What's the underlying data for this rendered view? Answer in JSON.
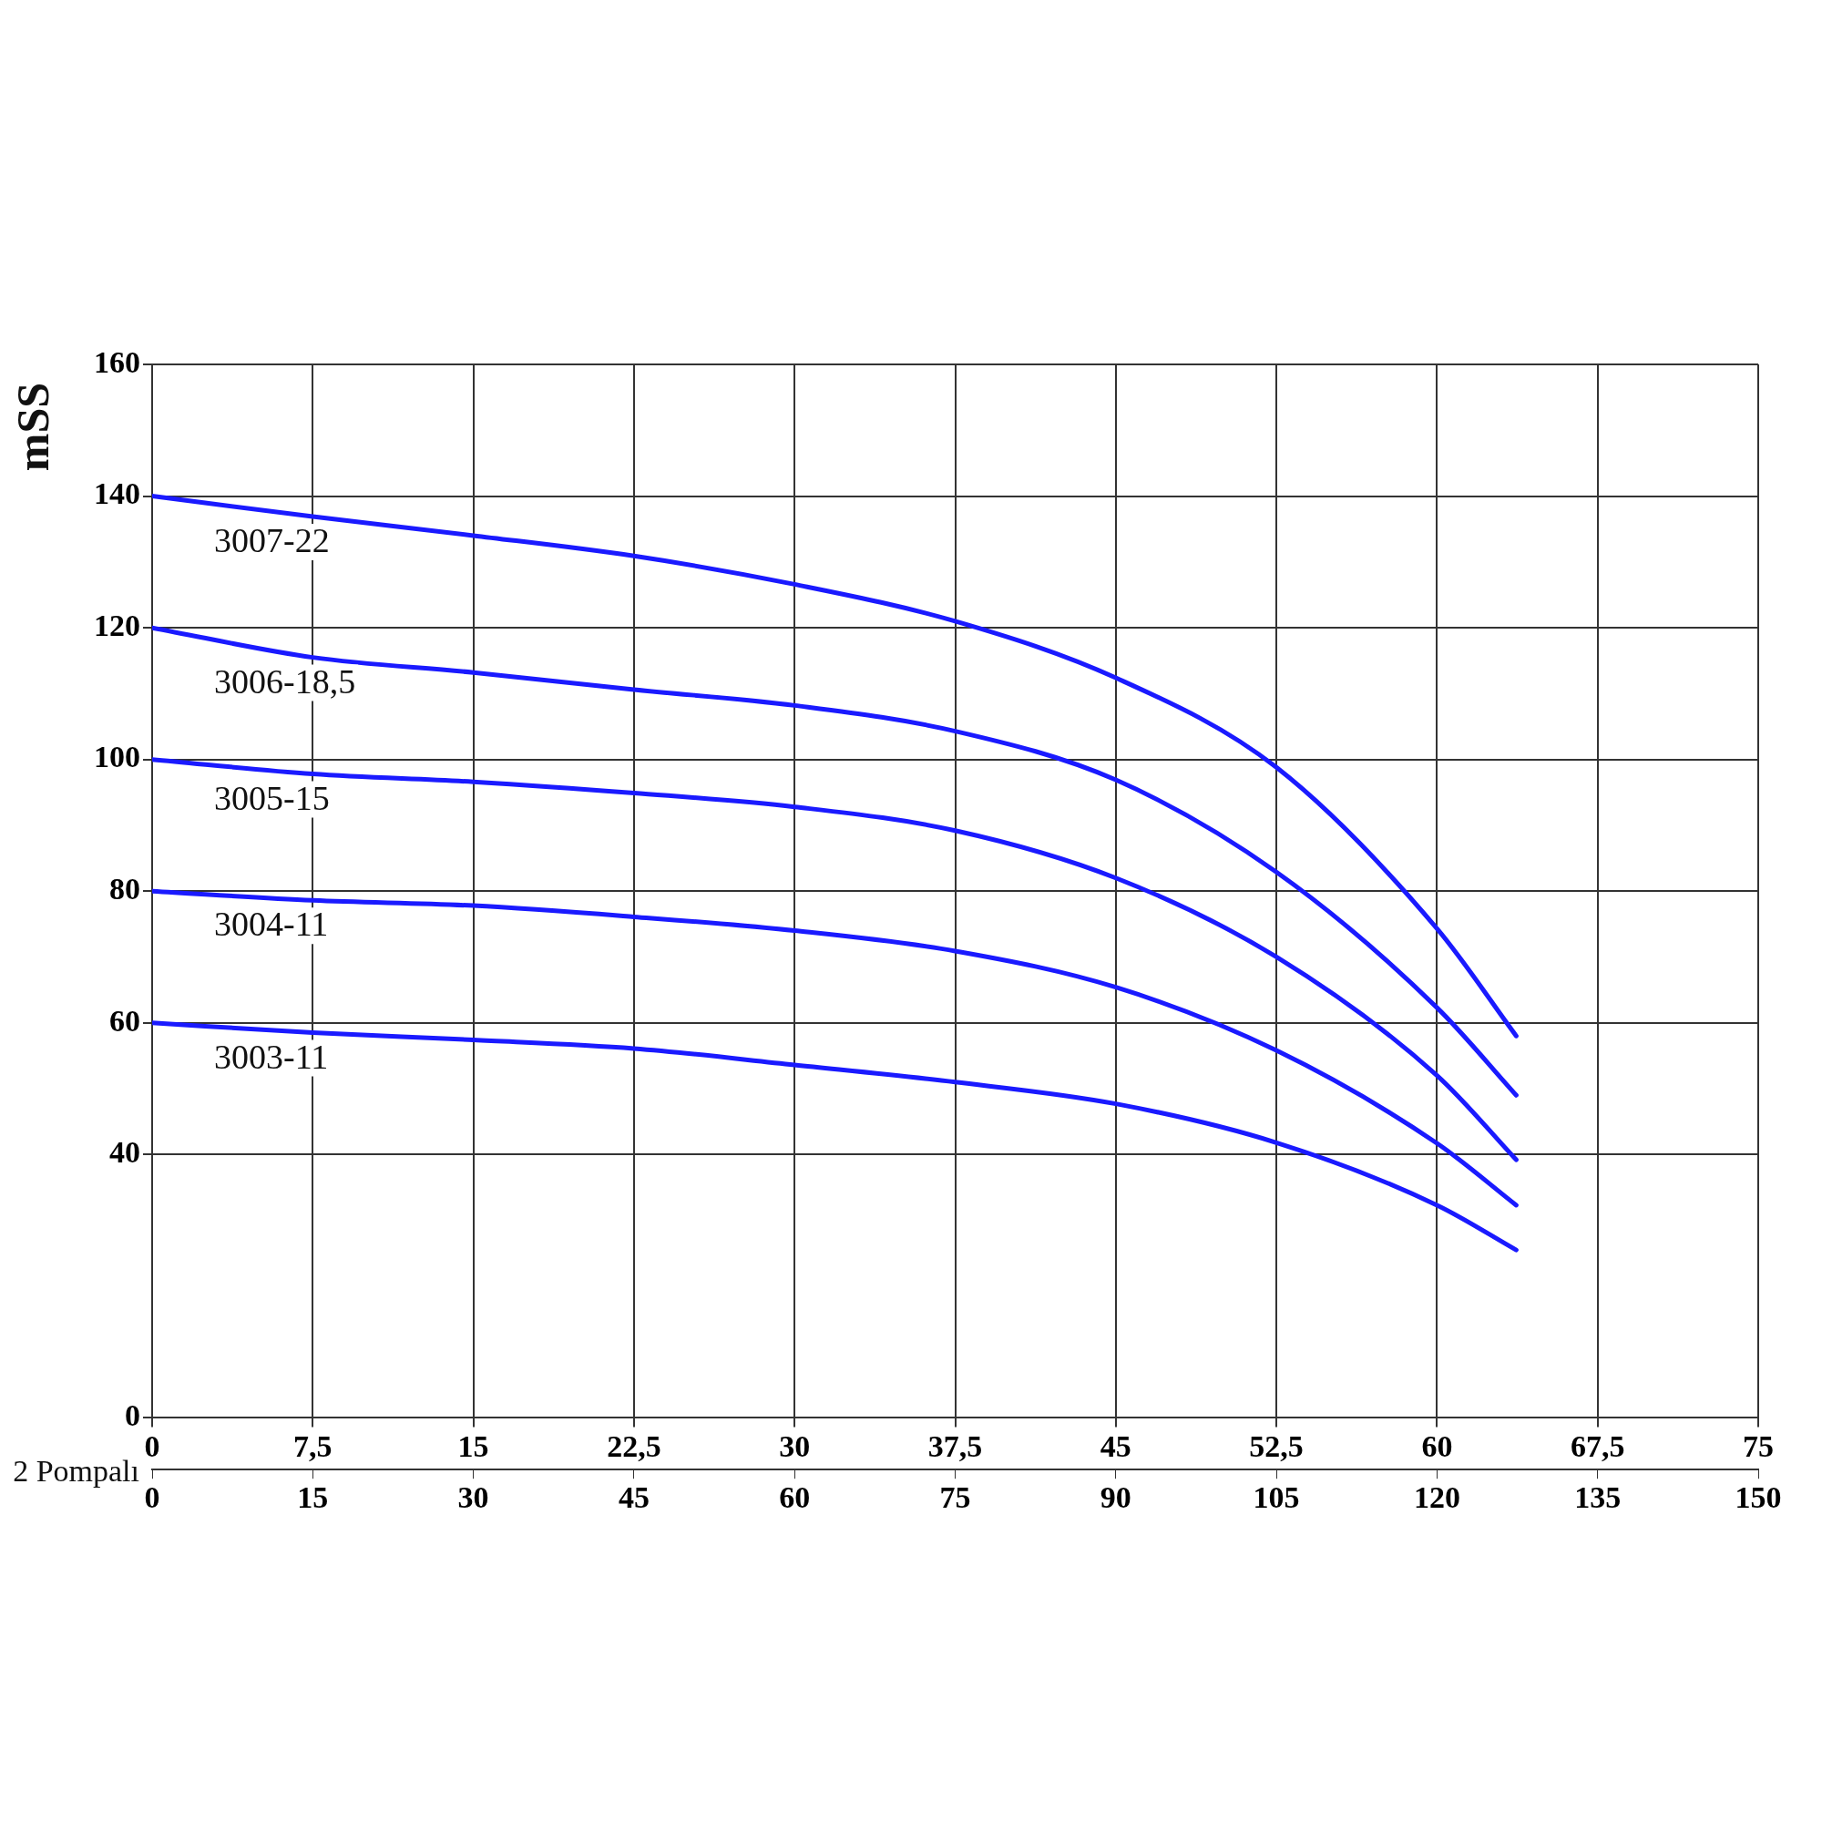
{
  "chart_data": {
    "type": "line",
    "ylabel": "mSS",
    "x2label": "2 Pompalı",
    "xlim": [
      0,
      75
    ],
    "xticks": [
      0,
      {
        "value": 7.5,
        "label": "7,5"
      },
      15,
      {
        "value": 22.5,
        "label": "22,5"
      },
      30,
      {
        "value": 37.5,
        "label": "37,5"
      },
      45,
      {
        "value": 52.5,
        "label": "52,5"
      },
      60,
      {
        "value": 67.5,
        "label": "67,5"
      },
      75
    ],
    "x2lim": [
      0,
      150
    ],
    "x2ticks": [
      0,
      15,
      30,
      45,
      60,
      75,
      90,
      105,
      120,
      135,
      150
    ],
    "ylim": [
      0,
      160
    ],
    "yticks": [
      0,
      40,
      60,
      80,
      100,
      120,
      140,
      160
    ],
    "grid": true,
    "legend": false,
    "marker": "none",
    "line_style": "solid",
    "x": [
      0,
      7.5,
      15,
      22.5,
      30,
      37.5,
      45,
      52.5,
      60,
      63.7
    ],
    "series": [
      {
        "name": "3007-22",
        "color": "#1a1aff",
        "values": [
          140,
          136.9,
          134,
          130.9,
          126.6,
          121,
          112.4,
          98.8,
          74.3,
          58
        ]
      },
      {
        "name": "3006-18,5",
        "color": "#1a1aff",
        "values": [
          120,
          115.5,
          113.2,
          110.6,
          108.2,
          104.3,
          96.9,
          82.9,
          62.3,
          49
        ]
      },
      {
        "name": "3005-15",
        "color": "#1a1aff",
        "values": [
          100,
          97.8,
          96.6,
          94.9,
          92.8,
          89.2,
          82,
          70,
          52,
          39.2
        ]
      },
      {
        "name": "3004-11",
        "color": "#1a1aff",
        "values": [
          80,
          78.6,
          77.8,
          76.1,
          74,
          70.9,
          65.4,
          55.8,
          41.7,
          32.3
        ]
      },
      {
        "name": "3003-11",
        "color": "#1a1aff",
        "values": [
          60,
          58.5,
          57.4,
          56.1,
          53.6,
          51,
          47.7,
          41.8,
          32.3,
          25.5
        ]
      }
    ]
  }
}
